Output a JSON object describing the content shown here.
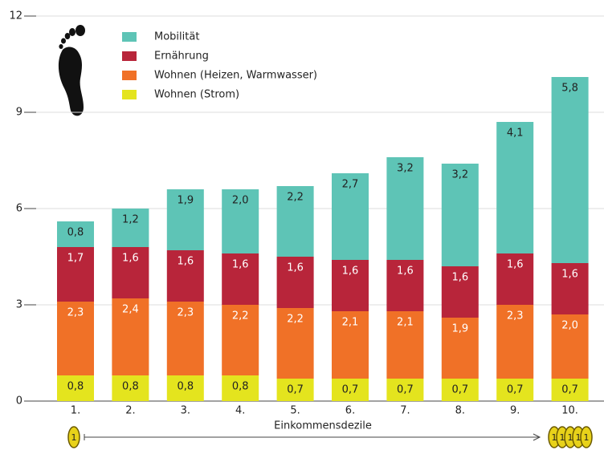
{
  "chart_data": {
    "type": "stacked_bar",
    "x_label": "Einkommensdezile",
    "categories": [
      "1.",
      "2.",
      "3.",
      "4.",
      "5.",
      "6.",
      "7.",
      "8.",
      "9.",
      "10."
    ],
    "series": [
      {
        "name": "Wohnen (Strom)",
        "color": "#e4e41e",
        "values": [
          0.8,
          0.8,
          0.8,
          0.8,
          0.7,
          0.7,
          0.7,
          0.7,
          0.7,
          0.7
        ],
        "value_labels": [
          "0,8",
          "0,8",
          "0,8",
          "0,8",
          "0,7",
          "0,7",
          "0,7",
          "0,7",
          "0,7",
          "0,7"
        ]
      },
      {
        "name": "Wohnen (Heizen, Warmwasser)",
        "color": "#f07127",
        "values": [
          2.3,
          2.4,
          2.3,
          2.2,
          2.2,
          2.1,
          2.1,
          1.9,
          2.3,
          2.0
        ],
        "value_labels": [
          "2,3",
          "2,4",
          "2,3",
          "2,2",
          "2,2",
          "2,1",
          "2,1",
          "1,9",
          "2,3",
          "2,0"
        ]
      },
      {
        "name": "Ernährung",
        "color": "#b8253a",
        "values": [
          1.7,
          1.6,
          1.6,
          1.6,
          1.6,
          1.6,
          1.6,
          1.6,
          1.6,
          1.6
        ],
        "value_labels": [
          "1,7",
          "1,6",
          "1,6",
          "1,6",
          "1,6",
          "1,6",
          "1,6",
          "1,6",
          "1,6",
          "1,6"
        ]
      },
      {
        "name": "Mobilität",
        "color": "#5ec4b6",
        "values": [
          0.8,
          1.2,
          1.9,
          2.0,
          2.2,
          2.7,
          3.2,
          3.2,
          4.1,
          5.8
        ],
        "value_labels": [
          "0,8",
          "1,2",
          "1,9",
          "2,0",
          "2,2",
          "2,7",
          "3,2",
          "3,2",
          "4,1",
          "5,8"
        ]
      }
    ],
    "ylim": [
      0,
      12
    ],
    "yticks": [
      0,
      3,
      6,
      9,
      12
    ],
    "grid": true,
    "coin_label": "1"
  }
}
